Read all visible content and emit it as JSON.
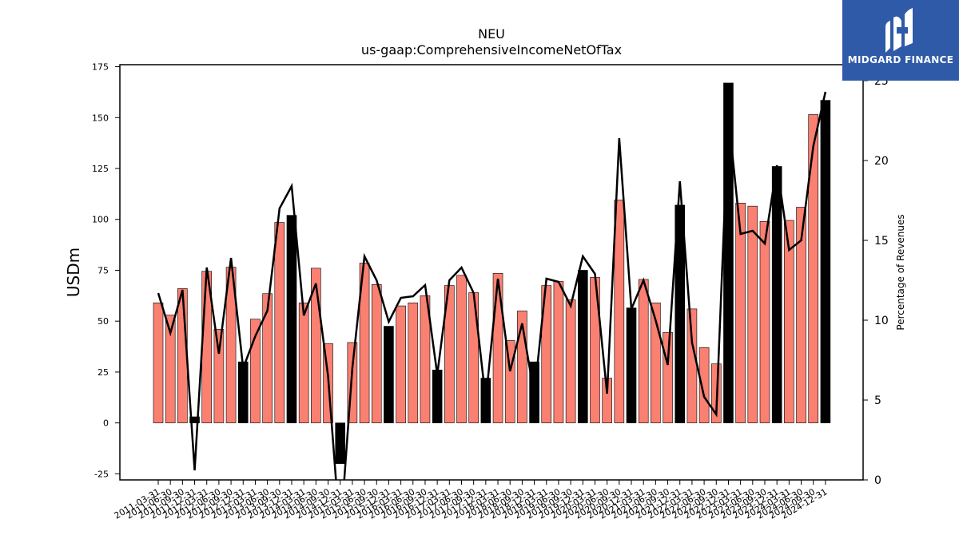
{
  "brand": {
    "name": "MIDGARD FINANCE",
    "color": "#2f5aa8"
  },
  "colors": {
    "bar": "#fa8072",
    "bar_highlight": "#000000",
    "line": "#000000"
  },
  "chart_data": {
    "type": "bar",
    "title": "NEU",
    "subtitle": "us-gaap:ComprehensiveIncomeNetOfTax",
    "ylabel": "USDm",
    "y2label": "Percentage of Revenues",
    "ylim": [
      -28,
      176
    ],
    "y2lim": [
      0,
      26
    ],
    "yticks": [
      -25,
      0,
      25,
      50,
      75,
      100,
      125,
      150,
      175
    ],
    "y2ticks": [
      0,
      5,
      10,
      15,
      20,
      25
    ],
    "categories": [
      "2011-03-31",
      "2011-06-30",
      "2011-09-30",
      "2011-12-31",
      "2012-03-31",
      "2012-06-30",
      "2012-09-30",
      "2012-12-31",
      "2013-03-31",
      "2013-06-30",
      "2013-09-30",
      "2013-12-31",
      "2014-03-31",
      "2014-06-30",
      "2014-09-30",
      "2014-12-31",
      "2015-03-31",
      "2015-06-30",
      "2015-09-30",
      "2015-12-31",
      "2016-03-31",
      "2016-06-30",
      "2016-09-30",
      "2016-12-31",
      "2017-03-31",
      "2017-06-30",
      "2017-09-30",
      "2017-12-31",
      "2018-03-31",
      "2018-06-30",
      "2018-09-30",
      "2018-12-31",
      "2019-03-31",
      "2019-06-30",
      "2019-09-30",
      "2019-12-31",
      "2020-03-31",
      "2020-06-30",
      "2020-09-30",
      "2020-12-31",
      "2021-03-31",
      "2021-06-30",
      "2021-09-30",
      "2021-12-31",
      "2022-03-31",
      "2022-06-30",
      "2022-09-30",
      "2022-12-31",
      "2023-03-31",
      "2023-06-30",
      "2023-09-30",
      "2023-12-31",
      "2024-03-31",
      "2024-06-30",
      "2024-09-30",
      "2024-12-31"
    ],
    "visible_tick_labels": [
      "2011-03-31",
      "2011-06-30",
      "2011-09-30",
      "2011-12-31",
      "2012-03-31",
      "2012-06-30",
      "2012-09-30",
      "2012-12-31",
      "2013-03-31",
      "2013-06-30",
      "2013-09-30",
      "2013-12-31",
      "2014-03-31",
      "2014-06-30",
      "2014-09-30",
      "2014-12-31",
      "2015-03-31",
      "2015-06-30",
      "2015-09-30",
      "2015-12-31",
      "2016-03-31",
      "2016-06-30",
      "2016-09-30",
      "2016-12-31",
      "2017-03-31",
      "2017-06-30",
      "2017-09-30",
      "2017-12-31",
      "2018-03-31",
      "2018-06-30",
      "2018-09-30",
      "2018-12-31",
      "2019-03-31",
      "2019-06-30",
      "2019-09-30",
      "2019-12-31",
      "2020-03-31",
      "2020-06-30",
      "2020-09-30",
      "2020-12-31",
      "2021-03-31",
      "2021-06-30",
      "2021-09-30",
      "2021-12-31",
      "2022-03-31",
      "2022-06-30",
      "2022-09-30",
      "2022-12-31",
      "2023-03-31",
      "2023-06-30",
      "2023-09-30",
      "2023-12-31",
      "2024-03-31",
      "2024-06-30",
      "2024-09-30",
      "2024-12-31"
    ],
    "values": [
      59,
      53,
      66,
      3,
      74.5,
      46,
      76.5,
      30,
      51,
      63.5,
      98.5,
      102,
      59,
      76,
      39,
      -20,
      39.5,
      78.5,
      68,
      47.5,
      57.5,
      59,
      62.5,
      26,
      67.5,
      72.5,
      64,
      22,
      73.5,
      40.5,
      55,
      30,
      67.5,
      69.5,
      60.5,
      75,
      71.5,
      22,
      109.5,
      56.5,
      70.5,
      59,
      44.5,
      107,
      56,
      37,
      29,
      167,
      108,
      106.5,
      99,
      126,
      99.5,
      106,
      151.5,
      158.5
    ],
    "highlight": [
      false,
      false,
      false,
      true,
      false,
      false,
      false,
      true,
      false,
      false,
      false,
      true,
      false,
      false,
      false,
      true,
      false,
      false,
      false,
      true,
      false,
      false,
      false,
      true,
      false,
      false,
      false,
      true,
      false,
      false,
      false,
      true,
      false,
      false,
      false,
      true,
      false,
      false,
      false,
      true,
      false,
      false,
      false,
      true,
      false,
      false,
      false,
      true,
      false,
      false,
      false,
      true,
      false,
      false,
      false,
      true
    ],
    "pct_of_revenues": [
      11.7,
      9.2,
      11.9,
      0.6,
      13.3,
      7.9,
      13.9,
      7.0,
      9.0,
      10.6,
      17.0,
      18.4,
      10.3,
      12.3,
      6.5,
      -3.5,
      7.0,
      14.0,
      12.5,
      9.9,
      11.4,
      11.5,
      12.2,
      6.6,
      12.5,
      13.3,
      11.7,
      5.0,
      12.6,
      6.8,
      9.8,
      5.3,
      12.6,
      12.4,
      10.9,
      14.0,
      12.9,
      5.4,
      21.4,
      10.7,
      12.5,
      10.0,
      7.2,
      18.7,
      8.6,
      5.2,
      4.1,
      22.8,
      15.4,
      15.6,
      14.8,
      19.7,
      14.4,
      15.0,
      20.9,
      24.3
    ]
  }
}
